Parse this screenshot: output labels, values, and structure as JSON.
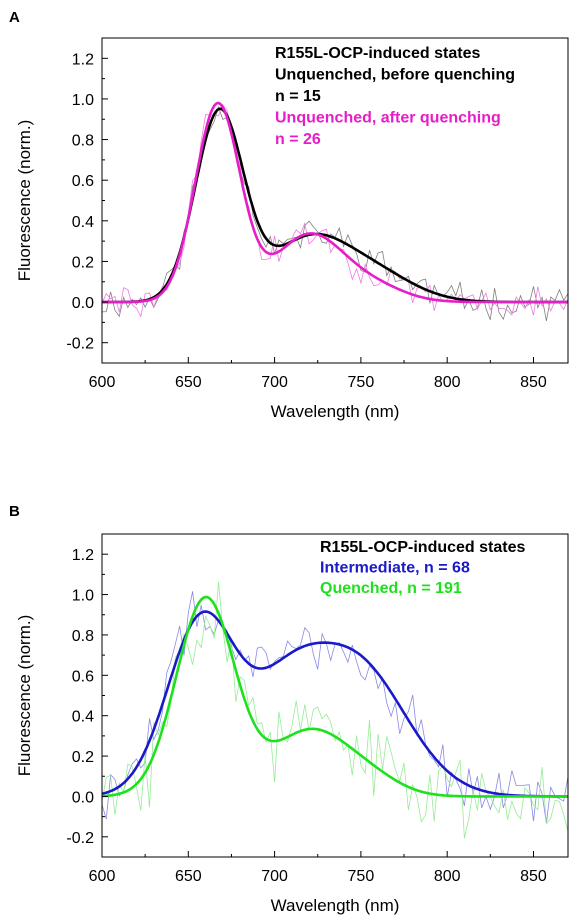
{
  "chart_data": [
    {
      "panel": "A",
      "type": "line",
      "xlabel": "Wavelength (nm)",
      "ylabel": "Fluorescence (norm.)",
      "xlim": [
        600,
        870
      ],
      "ylim": [
        -0.3,
        1.3
      ],
      "xticks": [
        600,
        650,
        700,
        750,
        800,
        850
      ],
      "yticks": [
        -0.2,
        0.0,
        0.2,
        0.4,
        0.6,
        0.8,
        1.0,
        1.2
      ],
      "legend": [
        {
          "text": "R155L-OCP-induced states",
          "color": "#000000"
        },
        {
          "text": "Unquenched, before quenching",
          "color": "#000000"
        },
        {
          "text": "n = 15",
          "color": "#000000"
        },
        {
          "text": "Unquenched, after quenching",
          "color": "#e61ec8"
        },
        {
          "text": "n = 26",
          "color": "#e61ec8"
        }
      ],
      "series": [
        {
          "color": "#000000",
          "fit": {
            "peaks": [
              [
                668,
                0.93,
                14
              ],
              [
                718,
                0.28,
                22
              ],
              [
                755,
                0.15,
                24
              ]
            ],
            "offset": 0.0
          },
          "noise": {
            "color": "#808080",
            "amp": 0.065,
            "seed": 11,
            "xmax": 870
          }
        },
        {
          "color": "#e61ec8",
          "fit": {
            "peaks": [
              [
                667,
                0.97,
                13
              ],
              [
                720,
                0.33,
                20
              ],
              [
                758,
                0.07,
                18
              ]
            ],
            "offset": 0.0
          },
          "noise": {
            "color": "#f07ae3",
            "amp": 0.07,
            "seed": 29,
            "xmax": 870
          }
        }
      ]
    },
    {
      "panel": "B",
      "type": "line",
      "xlabel": "Wavelength (nm)",
      "ylabel": "Fluorescence (norm.)",
      "xlim": [
        600,
        870
      ],
      "ylim": [
        -0.3,
        1.3
      ],
      "xticks": [
        600,
        650,
        700,
        750,
        800,
        850
      ],
      "yticks": [
        -0.2,
        0.0,
        0.2,
        0.4,
        0.6,
        0.8,
        1.0,
        1.2
      ],
      "legend": [
        {
          "text": "R155L-OCP-induced states",
          "color": "#000000"
        },
        {
          "text": "Intermediate, n = 68",
          "color": "#1a1ac8"
        },
        {
          "text": "Quenched, n = 191",
          "color": "#1ee01e"
        }
      ],
      "series": [
        {
          "color": "#1a1ac8",
          "fit": {
            "peaks": [
              [
                658,
                0.88,
                20
              ],
              [
                745,
                0.68,
                30
              ],
              [
                705,
                0.35,
                20
              ]
            ],
            "offset": 0.0
          },
          "noise": {
            "color": "#8a8ae6",
            "amp": 0.12,
            "seed": 47,
            "xmax": 870
          }
        },
        {
          "color": "#1ee01e",
          "fit": {
            "peaks": [
              [
                660,
                0.98,
                17
              ],
              [
                720,
                0.32,
                22
              ],
              [
                755,
                0.08,
                18
              ]
            ],
            "offset": 0.0
          },
          "noise": {
            "color": "#96ec96",
            "amp": 0.17,
            "seed": 83,
            "xmax": 870
          }
        }
      ]
    }
  ]
}
